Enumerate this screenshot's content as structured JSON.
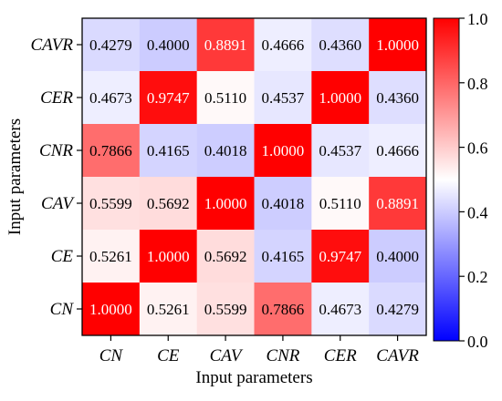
{
  "chart_data": {
    "type": "heatmap",
    "xlabel": "Input parameters",
    "ylabel": "Input parameters",
    "x_categories": [
      "CN",
      "CE",
      "CAV",
      "CNR",
      "CER",
      "CAVR"
    ],
    "y_categories": [
      "CAVR",
      "CER",
      "CNR",
      "CAV",
      "CE",
      "CN"
    ],
    "values": [
      [
        0.4279,
        0.4,
        0.8891,
        0.4666,
        0.436,
        1.0
      ],
      [
        0.4673,
        0.9747,
        0.511,
        0.4537,
        1.0,
        0.436
      ],
      [
        0.7866,
        0.4165,
        0.4018,
        1.0,
        0.4537,
        0.4666
      ],
      [
        0.5599,
        0.5692,
        1.0,
        0.4018,
        0.511,
        0.8891
      ],
      [
        0.5261,
        1.0,
        0.5692,
        0.4165,
        0.9747,
        0.4
      ],
      [
        1.0,
        0.5261,
        0.5599,
        0.7866,
        0.4673,
        0.4279
      ]
    ],
    "value_labels": [
      [
        "0.4279",
        "0.4000",
        "0.8891",
        "0.4666",
        "0.4360",
        "1.0000"
      ],
      [
        "0.4673",
        "0.9747",
        "0.5110",
        "0.4537",
        "1.0000",
        "0.4360"
      ],
      [
        "0.7866",
        "0.4165",
        "0.4018",
        "1.0000",
        "0.4537",
        "0.4666"
      ],
      [
        "0.5599",
        "0.5692",
        "1.0000",
        "0.4018",
        "0.5110",
        "0.8891"
      ],
      [
        "0.5261",
        "1.0000",
        "0.5692",
        "0.4165",
        "0.9747",
        "0.4000"
      ],
      [
        "1.0000",
        "0.5261",
        "0.5599",
        "0.7866",
        "0.4673",
        "0.4279"
      ]
    ],
    "colorbar": {
      "range": [
        0.0,
        1.0
      ],
      "ticks": [
        0.0,
        0.2,
        0.4,
        0.6,
        0.8,
        1.0
      ],
      "tick_labels": [
        "0.0",
        "0.2",
        "0.4",
        "0.6",
        "0.8",
        "1.0"
      ],
      "colormap": "bwr",
      "low_color": "#0000ff",
      "mid_color": "#ffffff",
      "high_color": "#ff0000"
    },
    "grid": false,
    "legend": "colorbar-right"
  }
}
